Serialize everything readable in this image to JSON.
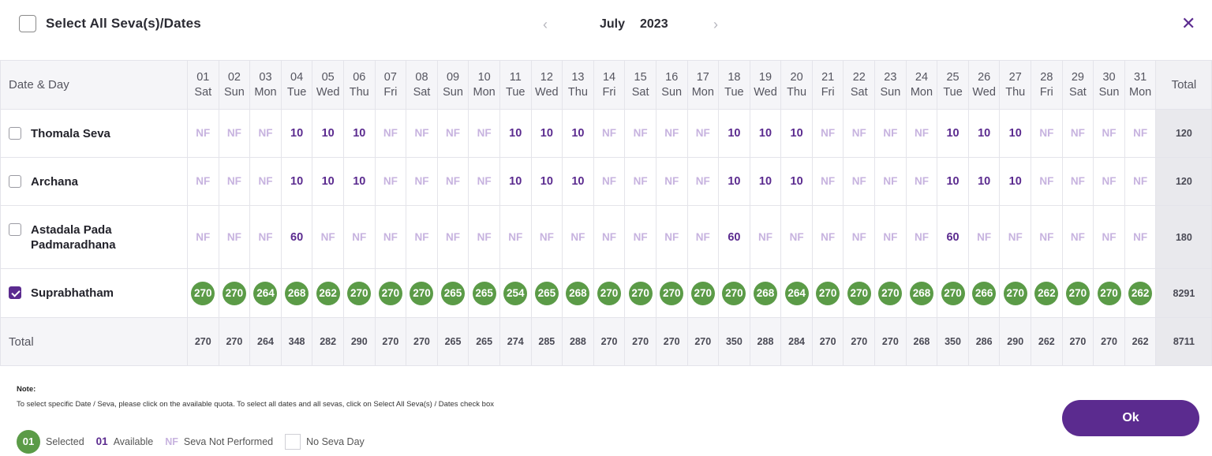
{
  "header": {
    "select_all_label": "Select All Seva(s)/Dates",
    "month": "July",
    "year": "2023",
    "prev_icon": "chevron-left-icon",
    "next_icon": "chevron-right-icon",
    "close_icon": "close-icon",
    "close_glyph": "✕"
  },
  "table": {
    "first_header": "Date & Day",
    "total_header": "Total",
    "total_row_label": "Total",
    "columns": [
      {
        "date": "01",
        "day": "Sat"
      },
      {
        "date": "02",
        "day": "Sun"
      },
      {
        "date": "03",
        "day": "Mon"
      },
      {
        "date": "04",
        "day": "Tue"
      },
      {
        "date": "05",
        "day": "Wed"
      },
      {
        "date": "06",
        "day": "Thu"
      },
      {
        "date": "07",
        "day": "Fri"
      },
      {
        "date": "08",
        "day": "Sat"
      },
      {
        "date": "09",
        "day": "Sun"
      },
      {
        "date": "10",
        "day": "Mon"
      },
      {
        "date": "11",
        "day": "Tue"
      },
      {
        "date": "12",
        "day": "Wed"
      },
      {
        "date": "13",
        "day": "Thu"
      },
      {
        "date": "14",
        "day": "Fri"
      },
      {
        "date": "15",
        "day": "Sat"
      },
      {
        "date": "16",
        "day": "Sun"
      },
      {
        "date": "17",
        "day": "Mon"
      },
      {
        "date": "18",
        "day": "Tue"
      },
      {
        "date": "19",
        "day": "Wed"
      },
      {
        "date": "20",
        "day": "Thu"
      },
      {
        "date": "21",
        "day": "Fri"
      },
      {
        "date": "22",
        "day": "Sat"
      },
      {
        "date": "23",
        "day": "Sun"
      },
      {
        "date": "24",
        "day": "Mon"
      },
      {
        "date": "25",
        "day": "Tue"
      },
      {
        "date": "26",
        "day": "Wed"
      },
      {
        "date": "27",
        "day": "Thu"
      },
      {
        "date": "28",
        "day": "Fri"
      },
      {
        "date": "29",
        "day": "Sat"
      },
      {
        "date": "30",
        "day": "Sun"
      },
      {
        "date": "31",
        "day": "Mon"
      }
    ],
    "rows": [
      {
        "name": "Thomala Seva",
        "checked": false,
        "total": "120",
        "height_class": "r61",
        "cells": [
          "NF",
          "NF",
          "NF",
          "10",
          "10",
          "10",
          "NF",
          "NF",
          "NF",
          "NF",
          "10",
          "10",
          "10",
          "NF",
          "NF",
          "NF",
          "NF",
          "10",
          "10",
          "10",
          "NF",
          "NF",
          "NF",
          "NF",
          "10",
          "10",
          "10",
          "NF",
          "NF",
          "NF",
          "NF"
        ]
      },
      {
        "name": "Archana",
        "checked": false,
        "total": "120",
        "height_class": "r61",
        "cells": [
          "NF",
          "NF",
          "NF",
          "10",
          "10",
          "10",
          "NF",
          "NF",
          "NF",
          "NF",
          "10",
          "10",
          "10",
          "NF",
          "NF",
          "NF",
          "NF",
          "10",
          "10",
          "10",
          "NF",
          "NF",
          "NF",
          "NF",
          "10",
          "10",
          "10",
          "NF",
          "NF",
          "NF",
          "NF"
        ]
      },
      {
        "name": "Astadala Pada Padmaradhana",
        "checked": false,
        "total": "180",
        "height_class": "r80",
        "cells": [
          "NF",
          "NF",
          "NF",
          "60",
          "NF",
          "NF",
          "NF",
          "NF",
          "NF",
          "NF",
          "NF",
          "NF",
          "NF",
          "NF",
          "NF",
          "NF",
          "NF",
          "60",
          "NF",
          "NF",
          "NF",
          "NF",
          "NF",
          "NF",
          "60",
          "NF",
          "NF",
          "NF",
          "NF",
          "NF",
          "NF"
        ]
      },
      {
        "name": "Suprabhatham",
        "checked": true,
        "total": "8291",
        "height_class": "r62",
        "selected": true,
        "cells": [
          "270",
          "270",
          "264",
          "268",
          "262",
          "270",
          "270",
          "270",
          "265",
          "265",
          "254",
          "265",
          "268",
          "270",
          "270",
          "270",
          "270",
          "270",
          "268",
          "264",
          "270",
          "270",
          "270",
          "268",
          "270",
          "266",
          "270",
          "262",
          "270",
          "270",
          "262"
        ]
      }
    ],
    "totals": [
      "270",
      "270",
      "264",
      "348",
      "282",
      "290",
      "270",
      "270",
      "265",
      "265",
      "274",
      "285",
      "288",
      "270",
      "270",
      "270",
      "270",
      "350",
      "288",
      "284",
      "270",
      "270",
      "270",
      "268",
      "350",
      "286",
      "290",
      "262",
      "270",
      "270",
      "262"
    ],
    "grand_total": "8711"
  },
  "notes": {
    "title": "Note:",
    "text": "To select specific Date / Seva, please click on the available quota. To select all dates and all sevas, click on Select All Seva(s) / Dates check box"
  },
  "legend": {
    "selected_sample": "01",
    "selected_label": "Selected",
    "available_sample": "01",
    "available_label": "Available",
    "nf_sample": "NF",
    "nf_label": "Seva Not Performed",
    "no_seva_label": "No Seva Day"
  },
  "actions": {
    "ok_label": "Ok"
  },
  "colors": {
    "accent": "#5b2b8f",
    "selected": "#5b9b47",
    "nf": "#c7b3df",
    "header_bg": "#f5f5f8",
    "total_bg": "#e9e9ed"
  }
}
